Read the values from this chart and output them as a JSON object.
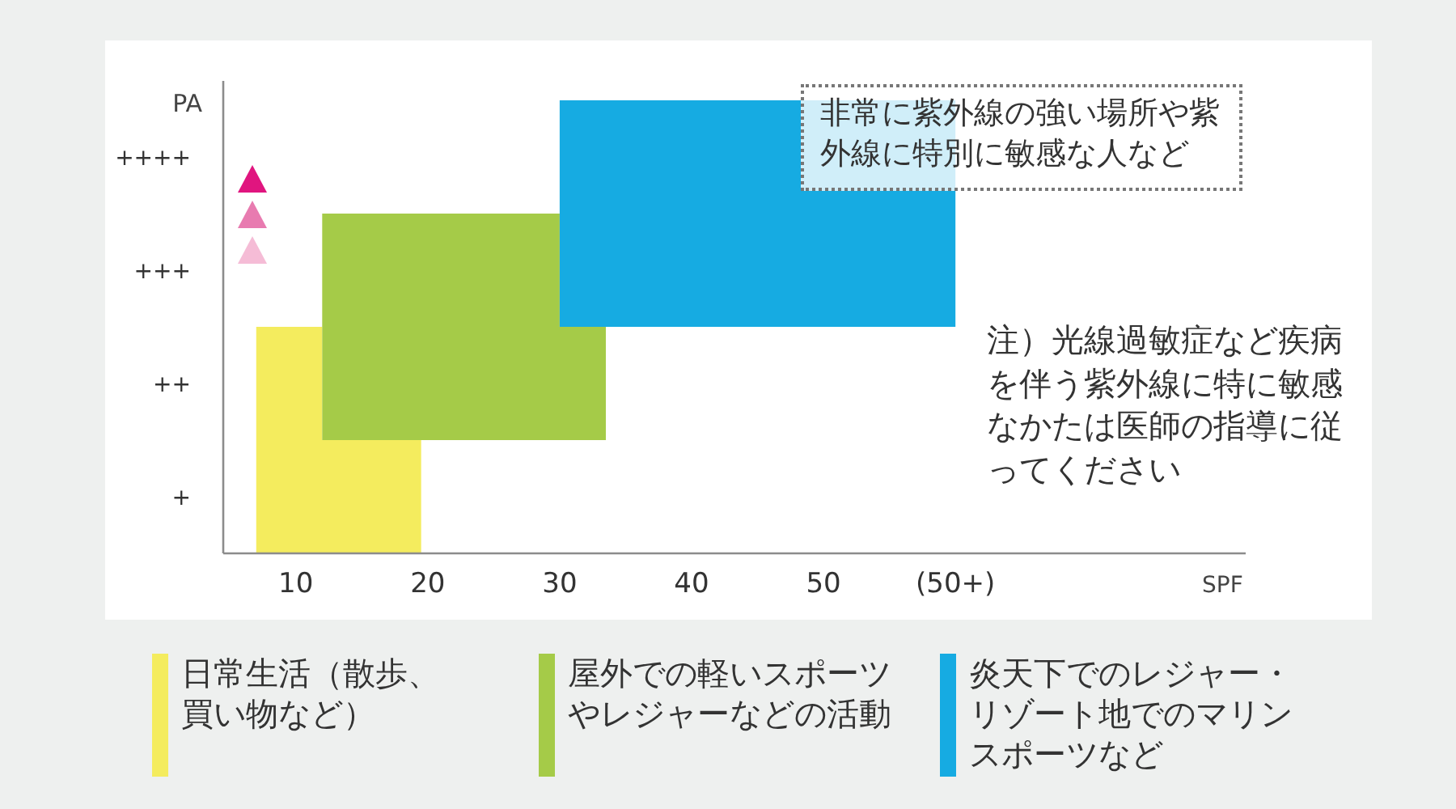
{
  "chart_data": {
    "type": "bar",
    "orientation": "horizontal",
    "categories": [
      "++++",
      "+++",
      "++",
      "+"
    ],
    "xlabel": "SPF",
    "ylabel": "PA",
    "xlim": [
      4.5,
      82
    ],
    "xticks": [
      10,
      20,
      30,
      40,
      50,
      {
        "value": 60,
        "label": "(50+)"
      }
    ],
    "series": [
      {
        "name": "日常生活（散歩、買い物など）",
        "color": "#f4ec5e",
        "values": [
          null,
          null,
          5,
          12.5
        ],
        "base": [
          null,
          null,
          7,
          7
        ]
      },
      {
        "name": "屋外での軽いスポーツやレジャーなどの活動",
        "color": "#a5cb48",
        "values": [
          null,
          18,
          21.5,
          null
        ],
        "base": [
          null,
          12,
          12,
          null
        ]
      },
      {
        "name": "炎天下でのレジャー・リゾート地でのマリンスポーツなど",
        "color": "#16abe2",
        "values": [
          30,
          30,
          null,
          null
        ],
        "base": [
          30,
          30,
          null,
          null
        ]
      }
    ],
    "annotations": [
      "非常に紫外線の強い場所や紫外線に特別に敏感な人など",
      "注）光線過敏症など疾病を伴う紫外線に特に敏感なかたは医師の指導に従ってください"
    ],
    "legend": "bottom"
  }
}
